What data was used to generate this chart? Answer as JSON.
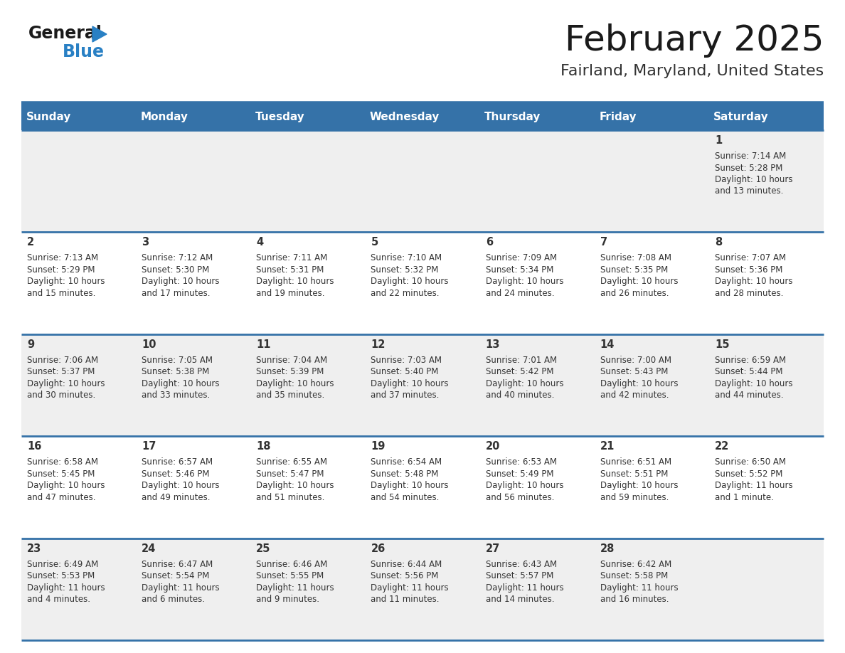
{
  "title": "February 2025",
  "subtitle": "Fairland, Maryland, United States",
  "header_bg": "#3572a8",
  "header_text_color": "#ffffff",
  "day_names": [
    "Sunday",
    "Monday",
    "Tuesday",
    "Wednesday",
    "Thursday",
    "Friday",
    "Saturday"
  ],
  "row_bg_odd": "#efefef",
  "row_bg_even": "#ffffff",
  "divider_color": "#3572a8",
  "text_color": "#333333",
  "day_num_color": "#333333",
  "weeks": [
    [
      {
        "day": null,
        "sunrise": null,
        "sunset": null,
        "daylight_line1": null,
        "daylight_line2": null
      },
      {
        "day": null,
        "sunrise": null,
        "sunset": null,
        "daylight_line1": null,
        "daylight_line2": null
      },
      {
        "day": null,
        "sunrise": null,
        "sunset": null,
        "daylight_line1": null,
        "daylight_line2": null
      },
      {
        "day": null,
        "sunrise": null,
        "sunset": null,
        "daylight_line1": null,
        "daylight_line2": null
      },
      {
        "day": null,
        "sunrise": null,
        "sunset": null,
        "daylight_line1": null,
        "daylight_line2": null
      },
      {
        "day": null,
        "sunrise": null,
        "sunset": null,
        "daylight_line1": null,
        "daylight_line2": null
      },
      {
        "day": 1,
        "sunrise": "7:14 AM",
        "sunset": "5:28 PM",
        "daylight_line1": "Daylight: 10 hours",
        "daylight_line2": "and 13 minutes."
      }
    ],
    [
      {
        "day": 2,
        "sunrise": "7:13 AM",
        "sunset": "5:29 PM",
        "daylight_line1": "Daylight: 10 hours",
        "daylight_line2": "and 15 minutes."
      },
      {
        "day": 3,
        "sunrise": "7:12 AM",
        "sunset": "5:30 PM",
        "daylight_line1": "Daylight: 10 hours",
        "daylight_line2": "and 17 minutes."
      },
      {
        "day": 4,
        "sunrise": "7:11 AM",
        "sunset": "5:31 PM",
        "daylight_line1": "Daylight: 10 hours",
        "daylight_line2": "and 19 minutes."
      },
      {
        "day": 5,
        "sunrise": "7:10 AM",
        "sunset": "5:32 PM",
        "daylight_line1": "Daylight: 10 hours",
        "daylight_line2": "and 22 minutes."
      },
      {
        "day": 6,
        "sunrise": "7:09 AM",
        "sunset": "5:34 PM",
        "daylight_line1": "Daylight: 10 hours",
        "daylight_line2": "and 24 minutes."
      },
      {
        "day": 7,
        "sunrise": "7:08 AM",
        "sunset": "5:35 PM",
        "daylight_line1": "Daylight: 10 hours",
        "daylight_line2": "and 26 minutes."
      },
      {
        "day": 8,
        "sunrise": "7:07 AM",
        "sunset": "5:36 PM",
        "daylight_line1": "Daylight: 10 hours",
        "daylight_line2": "and 28 minutes."
      }
    ],
    [
      {
        "day": 9,
        "sunrise": "7:06 AM",
        "sunset": "5:37 PM",
        "daylight_line1": "Daylight: 10 hours",
        "daylight_line2": "and 30 minutes."
      },
      {
        "day": 10,
        "sunrise": "7:05 AM",
        "sunset": "5:38 PM",
        "daylight_line1": "Daylight: 10 hours",
        "daylight_line2": "and 33 minutes."
      },
      {
        "day": 11,
        "sunrise": "7:04 AM",
        "sunset": "5:39 PM",
        "daylight_line1": "Daylight: 10 hours",
        "daylight_line2": "and 35 minutes."
      },
      {
        "day": 12,
        "sunrise": "7:03 AM",
        "sunset": "5:40 PM",
        "daylight_line1": "Daylight: 10 hours",
        "daylight_line2": "and 37 minutes."
      },
      {
        "day": 13,
        "sunrise": "7:01 AM",
        "sunset": "5:42 PM",
        "daylight_line1": "Daylight: 10 hours",
        "daylight_line2": "and 40 minutes."
      },
      {
        "day": 14,
        "sunrise": "7:00 AM",
        "sunset": "5:43 PM",
        "daylight_line1": "Daylight: 10 hours",
        "daylight_line2": "and 42 minutes."
      },
      {
        "day": 15,
        "sunrise": "6:59 AM",
        "sunset": "5:44 PM",
        "daylight_line1": "Daylight: 10 hours",
        "daylight_line2": "and 44 minutes."
      }
    ],
    [
      {
        "day": 16,
        "sunrise": "6:58 AM",
        "sunset": "5:45 PM",
        "daylight_line1": "Daylight: 10 hours",
        "daylight_line2": "and 47 minutes."
      },
      {
        "day": 17,
        "sunrise": "6:57 AM",
        "sunset": "5:46 PM",
        "daylight_line1": "Daylight: 10 hours",
        "daylight_line2": "and 49 minutes."
      },
      {
        "day": 18,
        "sunrise": "6:55 AM",
        "sunset": "5:47 PM",
        "daylight_line1": "Daylight: 10 hours",
        "daylight_line2": "and 51 minutes."
      },
      {
        "day": 19,
        "sunrise": "6:54 AM",
        "sunset": "5:48 PM",
        "daylight_line1": "Daylight: 10 hours",
        "daylight_line2": "and 54 minutes."
      },
      {
        "day": 20,
        "sunrise": "6:53 AM",
        "sunset": "5:49 PM",
        "daylight_line1": "Daylight: 10 hours",
        "daylight_line2": "and 56 minutes."
      },
      {
        "day": 21,
        "sunrise": "6:51 AM",
        "sunset": "5:51 PM",
        "daylight_line1": "Daylight: 10 hours",
        "daylight_line2": "and 59 minutes."
      },
      {
        "day": 22,
        "sunrise": "6:50 AM",
        "sunset": "5:52 PM",
        "daylight_line1": "Daylight: 11 hours",
        "daylight_line2": "and 1 minute."
      }
    ],
    [
      {
        "day": 23,
        "sunrise": "6:49 AM",
        "sunset": "5:53 PM",
        "daylight_line1": "Daylight: 11 hours",
        "daylight_line2": "and 4 minutes."
      },
      {
        "day": 24,
        "sunrise": "6:47 AM",
        "sunset": "5:54 PM",
        "daylight_line1": "Daylight: 11 hours",
        "daylight_line2": "and 6 minutes."
      },
      {
        "day": 25,
        "sunrise": "6:46 AM",
        "sunset": "5:55 PM",
        "daylight_line1": "Daylight: 11 hours",
        "daylight_line2": "and 9 minutes."
      },
      {
        "day": 26,
        "sunrise": "6:44 AM",
        "sunset": "5:56 PM",
        "daylight_line1": "Daylight: 11 hours",
        "daylight_line2": "and 11 minutes."
      },
      {
        "day": 27,
        "sunrise": "6:43 AM",
        "sunset": "5:57 PM",
        "daylight_line1": "Daylight: 11 hours",
        "daylight_line2": "and 14 minutes."
      },
      {
        "day": 28,
        "sunrise": "6:42 AM",
        "sunset": "5:58 PM",
        "daylight_line1": "Daylight: 11 hours",
        "daylight_line2": "and 16 minutes."
      },
      {
        "day": null,
        "sunrise": null,
        "sunset": null,
        "daylight_line1": null,
        "daylight_line2": null
      }
    ]
  ],
  "fig_width": 11.88,
  "fig_height": 9.18,
  "dpi": 100
}
